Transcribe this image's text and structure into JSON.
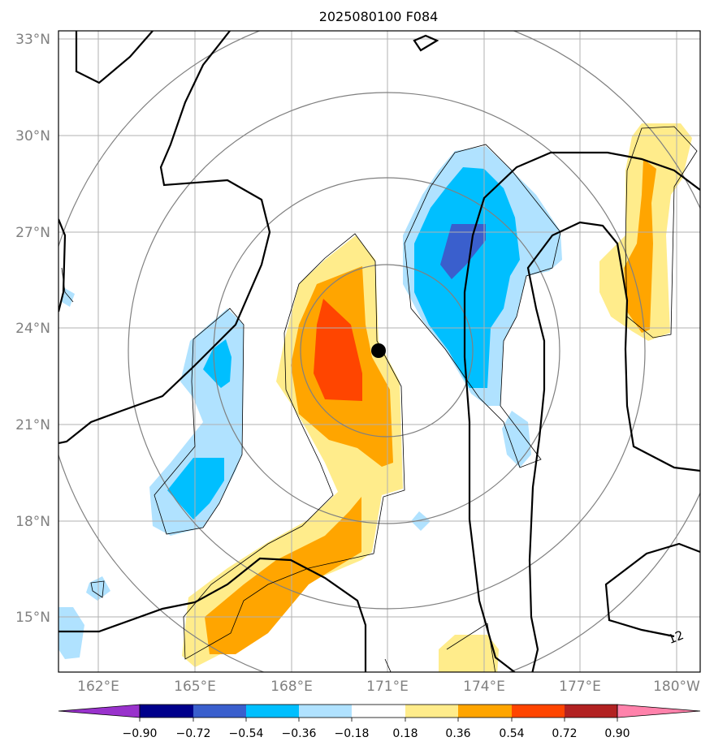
{
  "title": "2025080100 F084",
  "lat_ticks": [
    {
      "value": 33,
      "label": "33°N"
    },
    {
      "value": 30,
      "label": "30°N"
    },
    {
      "value": 27,
      "label": "27°N"
    },
    {
      "value": 24,
      "label": "24°N"
    },
    {
      "value": 21,
      "label": "21°N"
    },
    {
      "value": 18,
      "label": "18°N"
    },
    {
      "value": 15,
      "label": "15°N"
    }
  ],
  "lon_ticks": [
    {
      "value": 162,
      "label": "162°E"
    },
    {
      "value": 165,
      "label": "165°E"
    },
    {
      "value": 168,
      "label": "168°E"
    },
    {
      "value": 171,
      "label": "171°E"
    },
    {
      "value": 174,
      "label": "174°E"
    },
    {
      "value": 177,
      "label": "177°E"
    },
    {
      "value": 180,
      "label": "180°W"
    }
  ],
  "extent": {
    "lon_min": 160.7,
    "lon_max": 180.7,
    "lat_min": 13.2,
    "lat_max": 33.2
  },
  "center_marker": {
    "lon": 170.7,
    "lat": 23.3
  },
  "contour_label": {
    "text": "12",
    "lon": 179.8,
    "lat": 14.2
  },
  "colorbar": {
    "levels": [
      "−0.90",
      "−0.72",
      "−0.54",
      "−0.36",
      "−0.18",
      "0.18",
      "0.36",
      "0.54",
      "0.72",
      "0.90"
    ],
    "colors": [
      "#9932cc",
      "#00008b",
      "#3a5fcd",
      "#00bfff",
      "#b0e2ff",
      "#ffffff",
      "#ffec8b",
      "#ffa500",
      "#ff4500",
      "#b22222",
      "#ff82ab"
    ]
  }
}
